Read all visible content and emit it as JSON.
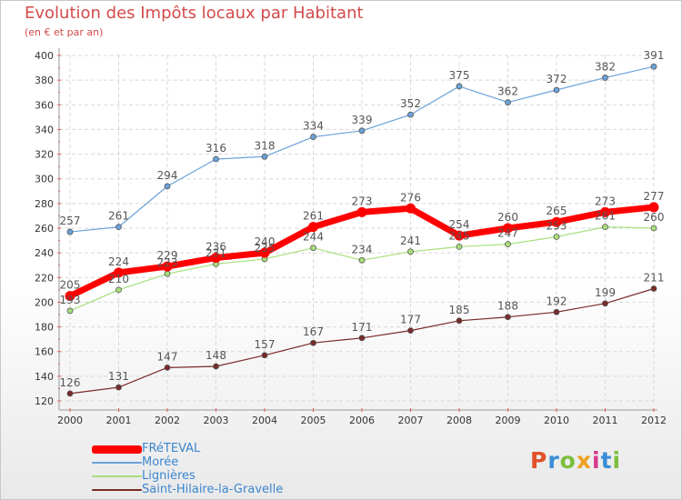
{
  "title": "Evolution des Impôts locaux par Habitant",
  "subtitle": "(en € et par an)",
  "brand": {
    "text": "Proxiti",
    "letter_colors": [
      "#e0522b",
      "#3a8dd8",
      "#7cbf3c",
      "#f0a020",
      "#d83a8c",
      "#3a8dd8",
      "#7cbf3c"
    ]
  },
  "chart_data": {
    "type": "line",
    "x": [
      "2000",
      "2001",
      "2002",
      "2003",
      "2004",
      "2005",
      "2006",
      "2007",
      "2008",
      "2009",
      "2010",
      "2011",
      "2012"
    ],
    "ylim": [
      120,
      400
    ],
    "yticks": [
      "120",
      "140",
      "160",
      "180",
      "200",
      "220",
      "240",
      "260",
      "280",
      "300",
      "320",
      "340",
      "360",
      "380",
      "400"
    ],
    "grid": true,
    "legend_position": "bottom-left",
    "series": [
      {
        "name": "FRéTEVAL",
        "color": "#ff0000",
        "values": [
          205,
          224,
          229,
          236,
          240,
          261,
          273,
          276,
          254,
          260,
          265,
          273,
          277
        ],
        "labels": [
          "205",
          "224",
          "229",
          "236",
          "240",
          "261",
          "273",
          "276",
          "254",
          "260",
          "265",
          "273",
          "277"
        ]
      },
      {
        "name": "Morée",
        "color": "#6aa2d8",
        "values": [
          257,
          261,
          294,
          316,
          318,
          334,
          339,
          352,
          375,
          362,
          372,
          382,
          391
        ],
        "labels": [
          "257",
          "261",
          "294",
          "316",
          "318",
          "334",
          "339",
          "352",
          "375",
          "362",
          "372",
          "382",
          "391"
        ]
      },
      {
        "name": "Lignières",
        "color": "#a8e07c",
        "values": [
          193,
          210,
          223,
          231,
          235,
          244,
          234,
          241,
          245,
          247,
          253,
          261,
          260
        ],
        "labels": [
          "193",
          "210",
          "223",
          "231",
          "235",
          "244",
          "234",
          "241",
          "245",
          "247",
          "253",
          "261",
          "260"
        ]
      },
      {
        "name": "Saint-Hilaire-la-Gravelle",
        "color": "#7a2a2a",
        "values": [
          126,
          131,
          147,
          148,
          157,
          167,
          171,
          177,
          185,
          188,
          192,
          199,
          211
        ],
        "labels": [
          "126",
          "131",
          "147",
          "148",
          "157",
          "167",
          "171",
          "177",
          "185",
          "188",
          "192",
          "199",
          "211"
        ]
      }
    ]
  }
}
